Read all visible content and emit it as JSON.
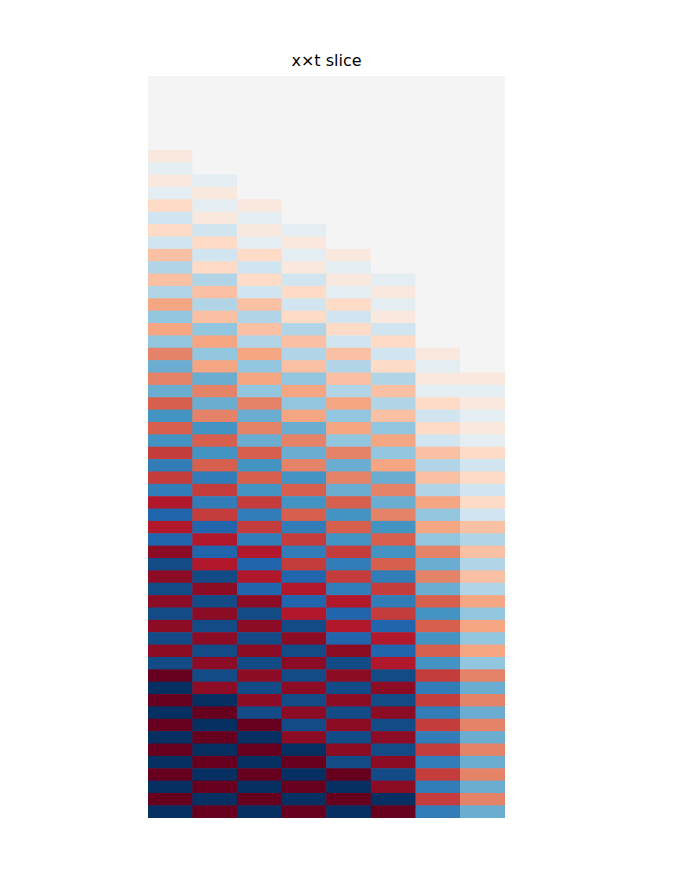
{
  "chart_data": {
    "type": "heatmap",
    "title": "x×t slice",
    "tick_labels": false,
    "zlim": [
      -1,
      1
    ],
    "cells": [
      [
        0,
        0,
        0,
        0,
        0,
        0,
        0,
        0
      ],
      [
        0,
        0,
        0,
        0,
        0,
        0,
        0,
        0
      ],
      [
        0,
        0,
        0,
        0,
        0,
        0,
        0,
        0
      ],
      [
        0,
        0,
        0,
        0,
        0,
        0,
        0,
        0
      ],
      [
        0,
        0,
        0,
        0,
        0,
        0,
        0,
        0
      ],
      [
        0,
        0,
        0,
        0,
        0,
        0,
        0,
        0
      ],
      [
        0.1,
        0,
        0,
        0,
        0,
        0,
        0,
        0
      ],
      [
        -0.1,
        0,
        0,
        0,
        0,
        0,
        0,
        0
      ],
      [
        0.1,
        -0.1,
        0,
        0,
        0,
        0,
        0,
        0
      ],
      [
        -0.1,
        0.1,
        0,
        0,
        0,
        0,
        0,
        0
      ],
      [
        0.2,
        -0.1,
        0.1,
        0,
        0,
        0,
        0,
        0
      ],
      [
        -0.2,
        0.1,
        -0.1,
        0,
        0,
        0,
        0,
        0
      ],
      [
        0.2,
        -0.2,
        0.1,
        -0.1,
        0,
        0,
        0,
        0
      ],
      [
        -0.2,
        0.2,
        -0.1,
        0.1,
        0,
        0,
        0,
        0
      ],
      [
        0.3,
        -0.2,
        0.2,
        -0.1,
        0.1,
        0,
        0,
        0
      ],
      [
        -0.3,
        0.2,
        -0.2,
        0.1,
        -0.1,
        0,
        0,
        0
      ],
      [
        0.3,
        -0.3,
        0.2,
        -0.2,
        0.1,
        -0.1,
        0,
        0
      ],
      [
        -0.3,
        0.3,
        -0.2,
        0.2,
        -0.1,
        0.1,
        0,
        0
      ],
      [
        0.4,
        -0.3,
        0.3,
        -0.2,
        0.2,
        -0.1,
        0,
        0
      ],
      [
        -0.4,
        0.3,
        -0.3,
        0.2,
        -0.2,
        0.1,
        0,
        0
      ],
      [
        0.4,
        -0.4,
        0.3,
        -0.3,
        0.2,
        -0.2,
        0,
        0
      ],
      [
        -0.4,
        0.4,
        -0.3,
        0.3,
        -0.2,
        0.2,
        0,
        0
      ],
      [
        0.5,
        -0.4,
        0.4,
        -0.3,
        0.3,
        -0.2,
        0.1,
        0
      ],
      [
        -0.5,
        0.4,
        -0.4,
        0.3,
        -0.3,
        0.2,
        -0.1,
        0
      ],
      [
        0.5,
        -0.5,
        0.4,
        -0.4,
        0.3,
        -0.3,
        0.1,
        0.1
      ],
      [
        -0.5,
        0.5,
        -0.4,
        0.4,
        -0.3,
        0.3,
        -0.1,
        -0.1
      ],
      [
        0.6,
        -0.5,
        0.5,
        -0.4,
        0.4,
        -0.3,
        0.2,
        0.1
      ],
      [
        -0.6,
        0.5,
        -0.5,
        0.4,
        -0.4,
        0.3,
        -0.2,
        -0.1
      ],
      [
        0.6,
        -0.6,
        0.5,
        -0.5,
        0.4,
        -0.4,
        0.2,
        0.1
      ],
      [
        -0.6,
        0.6,
        -0.5,
        0.5,
        -0.4,
        0.4,
        -0.2,
        -0.1
      ],
      [
        0.7,
        -0.6,
        0.6,
        -0.5,
        0.5,
        -0.4,
        0.3,
        0.2
      ],
      [
        -0.7,
        0.6,
        -0.6,
        0.5,
        -0.5,
        0.4,
        -0.3,
        -0.2
      ],
      [
        0.7,
        -0.7,
        0.6,
        -0.6,
        0.5,
        -0.5,
        0.3,
        0.2
      ],
      [
        -0.7,
        0.7,
        -0.6,
        0.6,
        -0.5,
        0.5,
        -0.3,
        -0.2
      ],
      [
        0.8,
        -0.7,
        0.7,
        -0.6,
        0.6,
        -0.5,
        0.4,
        0.2
      ],
      [
        -0.8,
        0.7,
        -0.7,
        0.6,
        -0.6,
        0.5,
        -0.4,
        -0.2
      ],
      [
        0.8,
        -0.8,
        0.7,
        -0.7,
        0.6,
        -0.6,
        0.4,
        0.3
      ],
      [
        -0.8,
        0.8,
        -0.7,
        0.7,
        -0.6,
        0.6,
        -0.4,
        -0.3
      ],
      [
        0.9,
        -0.8,
        0.8,
        -0.7,
        0.7,
        -0.6,
        0.5,
        0.3
      ],
      [
        -0.9,
        0.8,
        -0.8,
        0.7,
        -0.7,
        0.6,
        -0.5,
        -0.3
      ],
      [
        0.9,
        -0.9,
        0.8,
        -0.8,
        0.7,
        -0.7,
        0.5,
        0.3
      ],
      [
        -0.9,
        0.9,
        -0.8,
        0.8,
        -0.7,
        0.7,
        -0.5,
        -0.3
      ],
      [
        0.9,
        -0.9,
        0.9,
        -0.8,
        0.8,
        -0.7,
        0.6,
        0.4
      ],
      [
        -0.9,
        0.9,
        -0.9,
        0.8,
        -0.8,
        0.7,
        -0.6,
        -0.4
      ],
      [
        0.9,
        -0.9,
        0.9,
        -0.9,
        0.8,
        -0.8,
        0.6,
        0.4
      ],
      [
        -0.9,
        0.9,
        -0.9,
        0.9,
        -0.8,
        0.8,
        -0.6,
        -0.4
      ],
      [
        0.9,
        -0.9,
        0.9,
        -0.9,
        0.9,
        -0.8,
        0.6,
        0.4
      ],
      [
        -0.9,
        0.9,
        -0.9,
        0.9,
        -0.9,
        0.8,
        -0.6,
        -0.4
      ],
      [
        1,
        -0.9,
        0.9,
        -0.9,
        0.9,
        -0.9,
        0.7,
        0.5
      ],
      [
        -1,
        0.9,
        -0.9,
        0.9,
        -0.9,
        0.9,
        -0.7,
        -0.5
      ],
      [
        1,
        -1,
        0.9,
        -0.9,
        0.9,
        -0.9,
        0.7,
        0.5
      ],
      [
        -1,
        1,
        -0.9,
        0.9,
        -0.9,
        0.9,
        -0.7,
        -0.5
      ],
      [
        1,
        -1,
        1,
        -0.9,
        0.9,
        -0.9,
        0.7,
        0.5
      ],
      [
        -1,
        1,
        -1,
        0.9,
        -0.9,
        0.9,
        -0.7,
        -0.5
      ],
      [
        1,
        -1,
        1,
        -1,
        0.9,
        -0.9,
        0.7,
        0.5
      ],
      [
        -1,
        1,
        -1,
        1,
        -0.9,
        0.9,
        -0.7,
        -0.5
      ],
      [
        1,
        -1,
        1,
        -1,
        1,
        -0.9,
        0.7,
        0.5
      ],
      [
        -1,
        1,
        -1,
        1,
        -1,
        0.9,
        -0.7,
        -0.5
      ],
      [
        1,
        -1,
        1,
        -1,
        1,
        -1,
        0.7,
        0.5
      ],
      [
        -1,
        1,
        -1,
        1,
        -1,
        1,
        -0.7,
        -0.5
      ]
    ]
  }
}
